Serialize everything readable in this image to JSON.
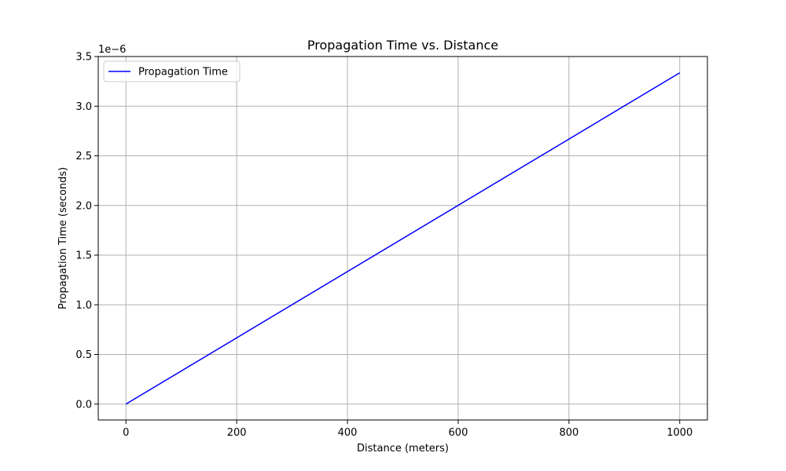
{
  "chart_data": {
    "type": "line",
    "title": "Propagation Time vs. Distance",
    "xlabel": "Distance (meters)",
    "ylabel": "Propagation Time (seconds)",
    "y_offset_text": "1e−6",
    "x": [
      0,
      1000
    ],
    "series": [
      {
        "name": "Propagation Time",
        "color": "#0000ff",
        "y": [
          0,
          3.336e-06
        ]
      }
    ],
    "xlim": [
      -50,
      1050
    ],
    "ylim": [
      -1.6e-07,
      3.5e-06
    ],
    "x_ticks": [
      0,
      200,
      400,
      600,
      800,
      1000
    ],
    "x_tick_labels": [
      "0",
      "200",
      "400",
      "600",
      "800",
      "1000"
    ],
    "y_ticks": [
      0,
      5e-07,
      1e-06,
      1.5e-06,
      2e-06,
      2.5e-06,
      3e-06,
      3.5e-06
    ],
    "y_tick_labels": [
      "0.0",
      "0.5",
      "1.0",
      "1.5",
      "2.0",
      "2.5",
      "3.0",
      "3.5"
    ],
    "grid": true,
    "legend_position": "top-left"
  }
}
